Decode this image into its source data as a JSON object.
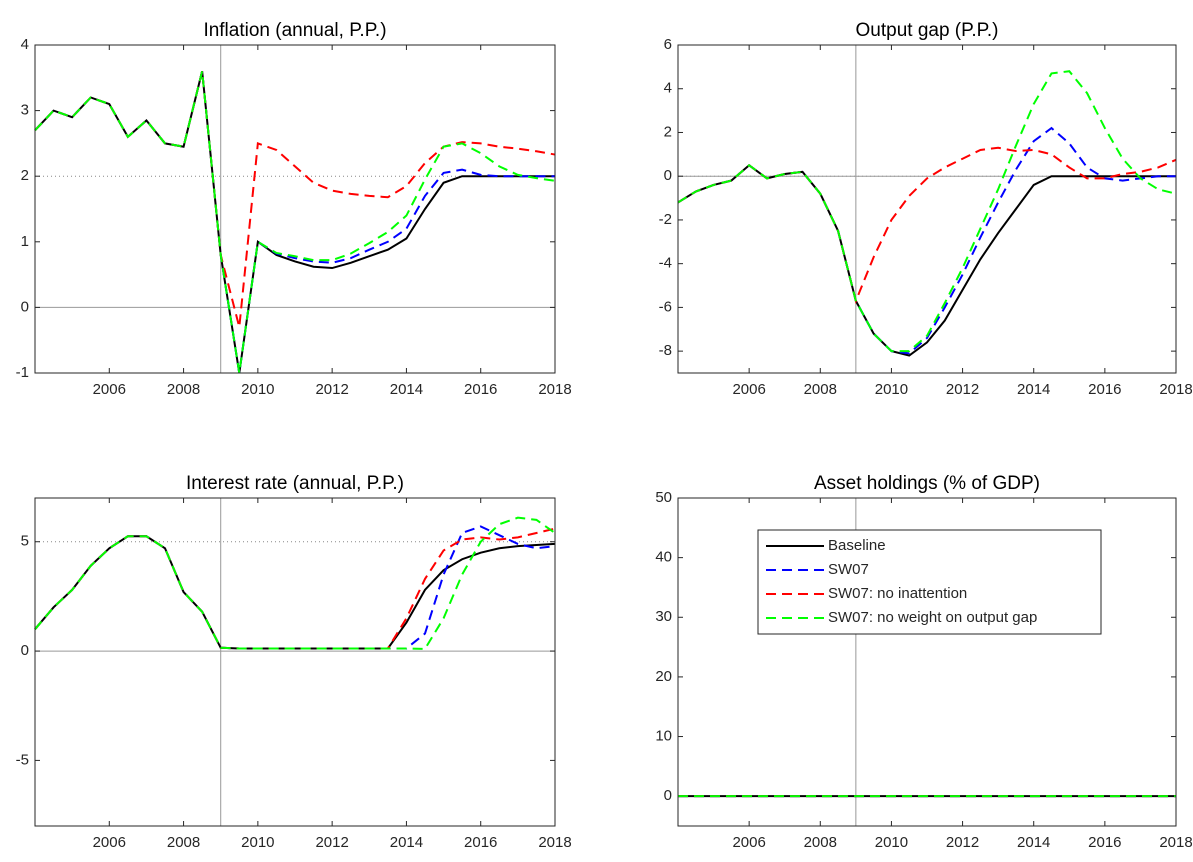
{
  "chart_data": [
    {
      "type": "line",
      "title": "Inflation (annual, P.P.)",
      "x": [
        2004,
        2004.5,
        2005,
        2005.5,
        2006,
        2006.5,
        2007,
        2007.5,
        2008,
        2008.5,
        2009,
        2009.5,
        2010,
        2010.5,
        2011,
        2011.5,
        2012,
        2012.5,
        2013,
        2013.5,
        2014,
        2014.5,
        2015,
        2015.5,
        2016,
        2016.5,
        2017,
        2017.5,
        2018
      ],
      "xlim": [
        2004,
        2018
      ],
      "xticks": [
        2006,
        2008,
        2010,
        2012,
        2014,
        2016,
        2018
      ],
      "ylim": [
        -1,
        4
      ],
      "yticks": [
        -1,
        0,
        1,
        2,
        3,
        4
      ],
      "zero_line": 0,
      "dotted_line": 2,
      "vline": 2009,
      "series": [
        {
          "color": "#000000",
          "dash": false,
          "values": [
            2.7,
            3.0,
            2.9,
            3.2,
            3.1,
            2.6,
            2.85,
            2.5,
            2.45,
            3.6,
            0.8,
            -1.0,
            1.0,
            0.8,
            0.7,
            0.62,
            0.6,
            0.68,
            0.78,
            0.88,
            1.05,
            1.5,
            1.9,
            2.0,
            2.0,
            2.0,
            2.0,
            2.0,
            2.0
          ]
        },
        {
          "color": "#0000ff",
          "dash": true,
          "values": [
            2.7,
            3.0,
            2.9,
            3.2,
            3.1,
            2.6,
            2.85,
            2.5,
            2.45,
            3.6,
            0.8,
            -1.0,
            1.0,
            0.82,
            0.75,
            0.7,
            0.68,
            0.75,
            0.88,
            1.0,
            1.2,
            1.7,
            2.05,
            2.1,
            2.02,
            2.0,
            2.0,
            2.0,
            2.0
          ]
        },
        {
          "color": "#ff0000",
          "dash": true,
          "values": [
            2.7,
            3.0,
            2.9,
            3.2,
            3.1,
            2.6,
            2.85,
            2.5,
            2.45,
            3.6,
            0.8,
            -0.3,
            2.5,
            2.4,
            2.15,
            1.9,
            1.78,
            1.73,
            1.7,
            1.68,
            1.85,
            2.2,
            2.45,
            2.52,
            2.5,
            2.45,
            2.42,
            2.38,
            2.33
          ]
        },
        {
          "color": "#00ff00",
          "dash": true,
          "values": [
            2.7,
            3.0,
            2.9,
            3.2,
            3.1,
            2.6,
            2.85,
            2.5,
            2.45,
            3.6,
            0.8,
            -1.0,
            1.0,
            0.83,
            0.78,
            0.72,
            0.72,
            0.82,
            0.98,
            1.15,
            1.4,
            1.95,
            2.45,
            2.5,
            2.35,
            2.15,
            2.02,
            1.97,
            1.93
          ]
        }
      ]
    },
    {
      "type": "line",
      "title": "Output gap (P.P.)",
      "x": [
        2004,
        2004.5,
        2005,
        2005.5,
        2006,
        2006.5,
        2007,
        2007.5,
        2008,
        2008.5,
        2009,
        2009.5,
        2010,
        2010.5,
        2011,
        2011.5,
        2012,
        2012.5,
        2013,
        2013.5,
        2014,
        2014.5,
        2015,
        2015.5,
        2016,
        2016.5,
        2017,
        2017.5,
        2018
      ],
      "xlim": [
        2004,
        2018
      ],
      "xticks": [
        2006,
        2008,
        2010,
        2012,
        2014,
        2016,
        2018
      ],
      "ylim": [
        -9,
        6
      ],
      "yticks": [
        -8,
        -6,
        -4,
        -2,
        0,
        2,
        4,
        6
      ],
      "zero_line": 0,
      "dotted_line": 0,
      "vline": 2009,
      "series": [
        {
          "color": "#000000",
          "dash": false,
          "values": [
            -1.2,
            -0.7,
            -0.4,
            -0.2,
            0.5,
            -0.1,
            0.1,
            0.2,
            -0.8,
            -2.5,
            -5.7,
            -7.2,
            -8.0,
            -8.2,
            -7.6,
            -6.6,
            -5.2,
            -3.8,
            -2.6,
            -1.5,
            -0.4,
            0,
            0,
            0,
            0,
            0,
            0,
            0,
            0
          ]
        },
        {
          "color": "#0000ff",
          "dash": true,
          "values": [
            -1.2,
            -0.7,
            -0.4,
            -0.2,
            0.5,
            -0.1,
            0.1,
            0.2,
            -0.8,
            -2.5,
            -5.7,
            -7.2,
            -8.0,
            -8.1,
            -7.4,
            -6.0,
            -4.5,
            -2.8,
            -1.2,
            0.3,
            1.6,
            2.2,
            1.5,
            0.4,
            -0.1,
            -0.2,
            -0.1,
            0,
            0
          ]
        },
        {
          "color": "#ff0000",
          "dash": true,
          "values": [
            -1.2,
            -0.7,
            -0.4,
            -0.2,
            0.5,
            -0.1,
            0.1,
            0.2,
            -0.8,
            -2.5,
            -5.7,
            -3.7,
            -2.0,
            -0.9,
            -0.1,
            0.4,
            0.8,
            1.2,
            1.3,
            1.15,
            1.2,
            1.0,
            0.4,
            -0.1,
            -0.1,
            0.1,
            0.2,
            0.4,
            0.75
          ]
        },
        {
          "color": "#00ff00",
          "dash": true,
          "values": [
            -1.2,
            -0.7,
            -0.4,
            -0.2,
            0.5,
            -0.1,
            0.1,
            0.2,
            -0.8,
            -2.5,
            -5.7,
            -7.2,
            -8.0,
            -8.0,
            -7.3,
            -5.8,
            -4.2,
            -2.4,
            -0.6,
            1.4,
            3.3,
            4.7,
            4.8,
            3.8,
            2.2,
            0.8,
            -0.1,
            -0.6,
            -0.8
          ]
        }
      ]
    },
    {
      "type": "line",
      "title": "Interest rate (annual, P.P.)",
      "x": [
        2004,
        2004.5,
        2005,
        2005.5,
        2006,
        2006.5,
        2007,
        2007.5,
        2008,
        2008.5,
        2009,
        2009.5,
        2010,
        2010.5,
        2011,
        2011.5,
        2012,
        2012.5,
        2013,
        2013.5,
        2014,
        2014.5,
        2015,
        2015.5,
        2016,
        2016.5,
        2017,
        2017.5,
        2018
      ],
      "xlim": [
        2004,
        2018
      ],
      "xticks": [
        2006,
        2008,
        2010,
        2012,
        2014,
        2016,
        2018
      ],
      "ylim": [
        -8,
        7
      ],
      "yticks": [
        -5,
        0,
        5
      ],
      "zero_line": 0,
      "dotted_line": 5,
      "vline": 2009,
      "series": [
        {
          "color": "#000000",
          "dash": false,
          "values": [
            1.0,
            2.0,
            2.8,
            3.9,
            4.7,
            5.25,
            5.25,
            4.7,
            2.7,
            1.8,
            0.15,
            0.12,
            0.12,
            0.12,
            0.12,
            0.12,
            0.12,
            0.12,
            0.12,
            0.12,
            1.3,
            2.8,
            3.7,
            4.2,
            4.5,
            4.7,
            4.8,
            4.85,
            4.9
          ]
        },
        {
          "color": "#0000ff",
          "dash": true,
          "values": [
            1.0,
            2.0,
            2.8,
            3.9,
            4.7,
            5.25,
            5.25,
            4.7,
            2.7,
            1.8,
            0.15,
            0.12,
            0.12,
            0.12,
            0.12,
            0.12,
            0.12,
            0.12,
            0.12,
            0.12,
            0.12,
            0.8,
            3.5,
            5.4,
            5.7,
            5.3,
            4.9,
            4.7,
            4.8
          ]
        },
        {
          "color": "#ff0000",
          "dash": true,
          "values": [
            1.0,
            2.0,
            2.8,
            3.9,
            4.7,
            5.25,
            5.25,
            4.7,
            2.7,
            1.8,
            0.15,
            0.12,
            0.12,
            0.12,
            0.12,
            0.12,
            0.12,
            0.12,
            0.12,
            0.12,
            1.5,
            3.3,
            4.6,
            5.1,
            5.2,
            5.1,
            5.2,
            5.4,
            5.6
          ]
        },
        {
          "color": "#00ff00",
          "dash": true,
          "values": [
            1.0,
            2.0,
            2.8,
            3.9,
            4.7,
            5.25,
            5.25,
            4.7,
            2.7,
            1.8,
            0.15,
            0.12,
            0.12,
            0.12,
            0.12,
            0.12,
            0.12,
            0.12,
            0.12,
            0.12,
            0.12,
            0.1,
            1.5,
            3.5,
            5.0,
            5.8,
            6.1,
            6.0,
            5.4
          ]
        }
      ]
    },
    {
      "type": "line",
      "title": "Asset holdings (% of GDP)",
      "x": [
        2004,
        2004.5,
        2005,
        2005.5,
        2006,
        2006.5,
        2007,
        2007.5,
        2008,
        2008.5,
        2009,
        2009.5,
        2010,
        2010.5,
        2011,
        2011.5,
        2012,
        2012.5,
        2013,
        2013.5,
        2014,
        2014.5,
        2015,
        2015.5,
        2016,
        2016.5,
        2017,
        2017.5,
        2018
      ],
      "xlim": [
        2004,
        2018
      ],
      "xticks": [
        2006,
        2008,
        2010,
        2012,
        2014,
        2016,
        2018
      ],
      "ylim": [
        -5,
        50
      ],
      "yticks": [
        0,
        10,
        20,
        30,
        40,
        50
      ],
      "vline": 2009,
      "legend": "upper-left",
      "series": [
        {
          "name": "Baseline",
          "color": "#000000",
          "dash": false,
          "values": [
            0,
            0,
            0,
            0,
            0,
            0,
            0,
            0,
            0,
            0,
            0,
            0,
            0,
            0,
            0,
            0,
            0,
            0,
            0,
            0,
            0,
            0,
            0,
            0,
            0,
            0,
            0,
            0,
            0
          ]
        },
        {
          "name": "SW07",
          "color": "#0000ff",
          "dash": true,
          "values": [
            0,
            0,
            0,
            0,
            0,
            0,
            0,
            0,
            0,
            0,
            0,
            0,
            0,
            0,
            0,
            0,
            0,
            0,
            0,
            0,
            0,
            0,
            0,
            0,
            0,
            0,
            0,
            0,
            0
          ]
        },
        {
          "name": "SW07: no inattention",
          "color": "#ff0000",
          "dash": true,
          "values": [
            0,
            0,
            0,
            0,
            0,
            0,
            0,
            0,
            0,
            0,
            0,
            0,
            0,
            0,
            0,
            0,
            0,
            0,
            0,
            0,
            0,
            0,
            0,
            0,
            0,
            0,
            0,
            0,
            0
          ]
        },
        {
          "name": "SW07: no weight on output gap",
          "color": "#00ff00",
          "dash": true,
          "values": [
            0,
            0,
            0,
            0,
            0,
            0,
            0,
            0,
            0,
            0,
            0,
            0,
            0,
            0,
            0,
            0,
            0,
            0,
            0,
            0,
            0,
            0,
            0,
            0,
            0,
            0,
            0,
            0,
            0
          ]
        }
      ]
    }
  ]
}
